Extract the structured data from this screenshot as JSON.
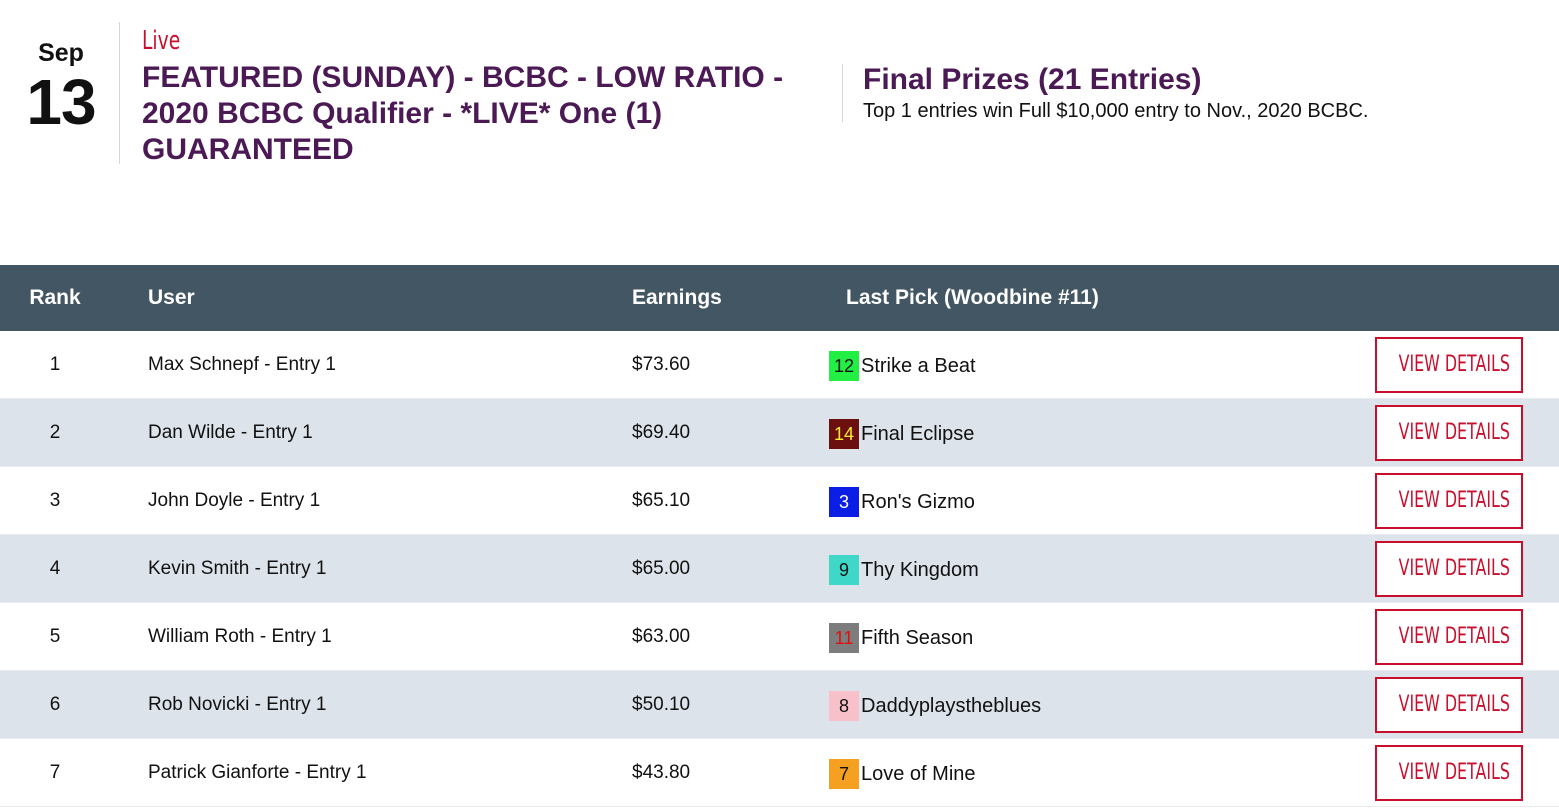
{
  "contest": {
    "month": "Sep",
    "day": "13",
    "status": "Live",
    "title": "FEATURED (SUNDAY) - BCBC - LOW RATIO - 2020 BCBC Qualifier - *LIVE* One (1) GUARANTEED"
  },
  "prizes": {
    "title": "Final Prizes (21 Entries)",
    "description": "Top 1 entries win Full $10,000 entry to Nov., 2020 BCBC."
  },
  "table": {
    "headers": {
      "rank": "Rank",
      "user": "User",
      "earnings": "Earnings",
      "last_pick": "Last Pick (Woodbine #11)"
    },
    "button_label": "VIEW DETAILS",
    "rows": [
      {
        "rank": "1",
        "user": "Max Schnepf - Entry 1",
        "earnings": "$73.60",
        "pick_num": "12",
        "pick_name": "Strike a Beat",
        "pick_bg": "#22ee44",
        "pick_fg": "#111111"
      },
      {
        "rank": "2",
        "user": "Dan Wilde - Entry 1",
        "earnings": "$69.40",
        "pick_num": "14",
        "pick_name": "Final Eclipse",
        "pick_bg": "#6b0f0f",
        "pick_fg": "#ffee33"
      },
      {
        "rank": "3",
        "user": "John Doyle - Entry 1",
        "earnings": "$65.10",
        "pick_num": "3",
        "pick_name": "Ron's Gizmo",
        "pick_bg": "#0a1ee6",
        "pick_fg": "#ffffff"
      },
      {
        "rank": "4",
        "user": "Kevin Smith - Entry 1",
        "earnings": "$65.00",
        "pick_num": "9",
        "pick_name": "Thy Kingdom",
        "pick_bg": "#3fd8c8",
        "pick_fg": "#111111"
      },
      {
        "rank": "5",
        "user": "William Roth - Entry 1",
        "earnings": "$63.00",
        "pick_num": "11",
        "pick_name": "Fifth Season",
        "pick_bg": "#7d7d7d",
        "pick_fg": "#e01010"
      },
      {
        "rank": "6",
        "user": "Rob Novicki - Entry 1",
        "earnings": "$50.10",
        "pick_num": "8",
        "pick_name": "Daddyplaystheblues",
        "pick_bg": "#f8c0c8",
        "pick_fg": "#111111"
      },
      {
        "rank": "7",
        "user": "Patrick Gianforte - Entry 1",
        "earnings": "$43.80",
        "pick_num": "7",
        "pick_name": "Love of Mine",
        "pick_bg": "#f5a020",
        "pick_fg": "#111111"
      }
    ]
  }
}
